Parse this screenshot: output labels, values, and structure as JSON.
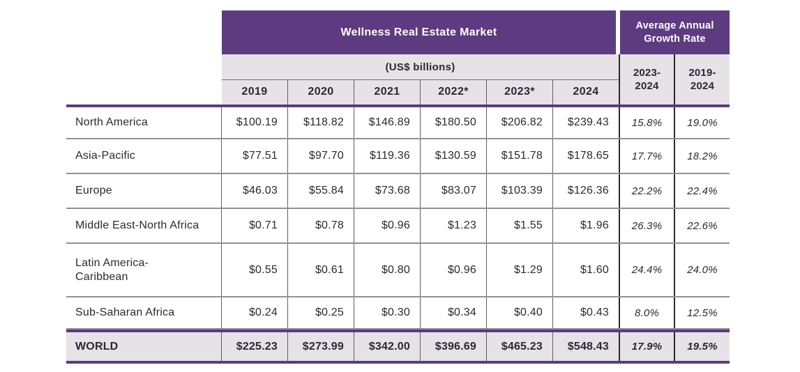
{
  "header": {
    "main_title": "Wellness Real Estate Market",
    "growth_title": "Average Annual Growth Rate",
    "units": "(US$ billions)",
    "years": [
      "2019",
      "2020",
      "2021",
      "2022*",
      "2023*",
      "2024"
    ],
    "growth_periods": [
      {
        "line1": "2023-",
        "line2": "2024"
      },
      {
        "line1": "2019-",
        "line2": "2024"
      }
    ]
  },
  "rows": [
    {
      "name": "North America",
      "values": [
        "$100.19",
        "$118.82",
        "$146.89",
        "$180.50",
        "$206.82",
        "$239.43"
      ],
      "growth": [
        "15.8%",
        "19.0%"
      ]
    },
    {
      "name": "Asia-Pacific",
      "values": [
        "$77.51",
        "$97.70",
        "$119.36",
        "$130.59",
        "$151.78",
        "$178.65"
      ],
      "growth": [
        "17.7%",
        "18.2%"
      ]
    },
    {
      "name": "Europe",
      "values": [
        "$46.03",
        "$55.84",
        "$73.68",
        "$83.07",
        "$103.39",
        "$126.36"
      ],
      "growth": [
        "22.2%",
        "22.4%"
      ]
    },
    {
      "name": "Middle East-North Africa",
      "values": [
        "$0.71",
        "$0.78",
        "$0.96",
        "$1.23",
        "$1.55",
        "$1.96"
      ],
      "growth": [
        "26.3%",
        "22.6%"
      ]
    },
    {
      "name": "Latin America-\nCaribbean",
      "values": [
        "$0.55",
        "$0.61",
        "$0.80",
        "$0.96",
        "$1.29",
        "$1.60"
      ],
      "growth": [
        "24.4%",
        "24.0%"
      ]
    },
    {
      "name": "Sub-Saharan Africa",
      "values": [
        "$0.24",
        "$0.25",
        "$0.30",
        "$0.34",
        "$0.40",
        "$0.43"
      ],
      "growth": [
        "8.0%",
        "12.5%"
      ]
    }
  ],
  "world": {
    "name": "WORLD",
    "values": [
      "$225.23",
      "$273.99",
      "$342.00",
      "$396.69",
      "$465.23",
      "$548.43"
    ],
    "growth": [
      "17.9%",
      "19.5%"
    ]
  },
  "colors": {
    "header_purple": "#5e3a80",
    "band_lavender": "#e6e2e7",
    "text_dark": "#2b2930",
    "row_divider_gray": "#929095"
  }
}
